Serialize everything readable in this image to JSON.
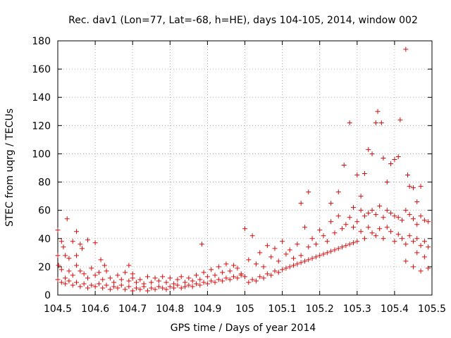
{
  "chart_data": {
    "type": "scatter",
    "title": "Rec. dav1 (Lon=77, Lat=-68, h=HE), days 104-105, 2014, window 002",
    "xlabel": "GPS time / Days of year 2014",
    "ylabel": "STEC from uqrg / TECUs",
    "xlim": [
      104.5,
      105.5
    ],
    "ylim": [
      0,
      180
    ],
    "xticks": [
      "104.5",
      "104.6",
      "104.7",
      "104.8",
      "104.9",
      "105",
      "105.1",
      "105.2",
      "105.3",
      "105.4",
      "105.5"
    ],
    "yticks": [
      "0",
      "20",
      "40",
      "60",
      "80",
      "100",
      "120",
      "140",
      "160",
      "180"
    ],
    "grid": true,
    "marker": "plus",
    "color": "#d01010",
    "series": [
      {
        "points": [
          [
            104.5,
            46
          ],
          [
            104.5,
            28
          ],
          [
            104.51,
            38
          ],
          [
            104.515,
            34
          ],
          [
            104.52,
            28
          ],
          [
            104.525,
            54
          ],
          [
            104.53,
            26
          ],
          [
            104.54,
            38
          ],
          [
            104.55,
            45
          ],
          [
            104.55,
            28
          ],
          [
            104.56,
            36
          ],
          [
            104.565,
            33
          ],
          [
            104.58,
            39
          ],
          [
            104.6,
            37
          ],
          [
            104.615,
            25
          ],
          [
            104.625,
            21
          ],
          [
            104.69,
            21
          ],
          [
            104.7,
            15
          ],
          [
            104.885,
            36
          ],
          [
            104.502,
            21
          ],
          [
            104.51,
            18
          ],
          [
            104.52,
            12
          ],
          [
            104.53,
            17
          ],
          [
            104.54,
            14
          ],
          [
            104.55,
            21
          ],
          [
            104.56,
            17
          ],
          [
            104.57,
            15
          ],
          [
            104.58,
            12
          ],
          [
            104.59,
            19
          ],
          [
            104.6,
            14
          ],
          [
            104.61,
            16
          ],
          [
            104.62,
            11
          ],
          [
            104.63,
            17
          ],
          [
            104.64,
            12
          ],
          [
            104.65,
            9
          ],
          [
            104.66,
            14
          ],
          [
            104.67,
            11
          ],
          [
            104.68,
            16
          ],
          [
            104.69,
            10
          ],
          [
            104.7,
            12
          ],
          [
            104.71,
            9
          ],
          [
            104.72,
            11
          ],
          [
            104.73,
            8
          ],
          [
            104.74,
            13
          ],
          [
            104.75,
            9
          ],
          [
            104.76,
            12
          ],
          [
            104.77,
            10
          ],
          [
            104.78,
            13
          ],
          [
            104.79,
            9
          ],
          [
            104.8,
            12
          ],
          [
            104.81,
            8
          ],
          [
            104.82,
            11
          ],
          [
            104.83,
            13
          ],
          [
            104.84,
            9
          ],
          [
            104.85,
            12
          ],
          [
            104.86,
            10
          ],
          [
            104.87,
            14
          ],
          [
            104.88,
            11
          ],
          [
            104.89,
            16
          ],
          [
            104.9,
            13
          ],
          [
            104.91,
            18
          ],
          [
            104.92,
            14
          ],
          [
            104.93,
            20
          ],
          [
            104.94,
            16
          ],
          [
            104.95,
            22
          ],
          [
            104.96,
            17
          ],
          [
            104.97,
            21
          ],
          [
            104.98,
            19
          ],
          [
            104.99,
            15
          ],
          [
            104.5,
            11
          ],
          [
            104.51,
            9
          ],
          [
            104.52,
            8
          ],
          [
            104.53,
            10
          ],
          [
            104.54,
            7
          ],
          [
            104.55,
            9
          ],
          [
            104.56,
            6
          ],
          [
            104.57,
            8
          ],
          [
            104.58,
            5
          ],
          [
            104.59,
            7
          ],
          [
            104.6,
            6
          ],
          [
            104.61,
            8
          ],
          [
            104.62,
            5
          ],
          [
            104.63,
            7
          ],
          [
            104.64,
            4
          ],
          [
            104.65,
            6
          ],
          [
            104.66,
            5
          ],
          [
            104.67,
            7
          ],
          [
            104.68,
            4
          ],
          [
            104.69,
            6
          ],
          [
            104.7,
            3
          ],
          [
            104.71,
            5
          ],
          [
            104.72,
            4
          ],
          [
            104.73,
            6
          ],
          [
            104.74,
            3
          ],
          [
            104.75,
            5
          ],
          [
            104.76,
            4
          ],
          [
            104.77,
            6
          ],
          [
            104.78,
            5
          ],
          [
            104.79,
            4
          ],
          [
            104.8,
            6
          ],
          [
            104.81,
            5
          ],
          [
            104.82,
            7
          ],
          [
            104.83,
            5
          ],
          [
            104.84,
            6
          ],
          [
            104.85,
            7
          ],
          [
            104.86,
            6
          ],
          [
            104.87,
            8
          ],
          [
            104.88,
            7
          ],
          [
            104.89,
            9
          ],
          [
            104.9,
            8
          ],
          [
            104.91,
            10
          ],
          [
            104.92,
            9
          ],
          [
            104.93,
            11
          ],
          [
            104.94,
            10
          ],
          [
            104.95,
            12
          ],
          [
            104.96,
            11
          ],
          [
            104.97,
            13
          ],
          [
            104.98,
            12
          ],
          [
            104.99,
            14
          ],
          [
            105.0,
            13
          ],
          [
            105.01,
            9
          ],
          [
            105.02,
            11
          ],
          [
            105.03,
            10
          ],
          [
            105.04,
            13
          ],
          [
            105.05,
            12
          ],
          [
            105.06,
            15
          ],
          [
            105.07,
            14
          ],
          [
            105.08,
            17
          ],
          [
            105.09,
            16
          ],
          [
            105.1,
            18
          ],
          [
            105.11,
            19
          ],
          [
            105.12,
            20
          ],
          [
            105.13,
            21
          ],
          [
            105.14,
            22
          ],
          [
            105.15,
            23
          ],
          [
            105.16,
            24
          ],
          [
            105.17,
            25
          ],
          [
            105.18,
            26
          ],
          [
            105.19,
            27
          ],
          [
            105.2,
            28
          ],
          [
            105.21,
            29
          ],
          [
            105.22,
            30
          ],
          [
            105.23,
            31
          ],
          [
            105.24,
            32
          ],
          [
            105.25,
            33
          ],
          [
            105.26,
            34
          ],
          [
            105.27,
            35
          ],
          [
            105.28,
            36
          ],
          [
            105.29,
            37
          ],
          [
            105.3,
            38
          ],
          [
            105.0,
            47
          ],
          [
            105.01,
            25
          ],
          [
            105.02,
            42
          ],
          [
            105.03,
            22
          ],
          [
            105.04,
            30
          ],
          [
            105.05,
            20
          ],
          [
            105.06,
            35
          ],
          [
            105.07,
            27
          ],
          [
            105.08,
            33
          ],
          [
            105.09,
            24
          ],
          [
            105.1,
            38
          ],
          [
            105.11,
            29
          ],
          [
            105.12,
            32
          ],
          [
            105.13,
            26
          ],
          [
            105.14,
            36
          ],
          [
            105.15,
            28
          ],
          [
            105.16,
            48
          ],
          [
            105.17,
            34
          ],
          [
            105.18,
            40
          ],
          [
            105.19,
            36
          ],
          [
            105.2,
            46
          ],
          [
            105.21,
            42
          ],
          [
            105.22,
            38
          ],
          [
            105.23,
            52
          ],
          [
            105.24,
            44
          ],
          [
            105.25,
            56
          ],
          [
            105.26,
            47
          ],
          [
            105.27,
            50
          ],
          [
            105.28,
            55
          ],
          [
            105.29,
            48
          ],
          [
            105.3,
            52
          ],
          [
            105.15,
            65
          ],
          [
            105.17,
            73
          ],
          [
            105.23,
            65
          ],
          [
            105.25,
            73
          ],
          [
            105.265,
            92
          ],
          [
            105.28,
            122
          ],
          [
            105.29,
            62
          ],
          [
            105.3,
            85
          ],
          [
            105.31,
            70
          ],
          [
            105.32,
            86
          ],
          [
            105.33,
            103
          ],
          [
            105.34,
            100
          ],
          [
            105.35,
            122
          ],
          [
            105.355,
            130
          ],
          [
            105.365,
            122
          ],
          [
            105.37,
            97
          ],
          [
            105.38,
            80
          ],
          [
            105.39,
            93
          ],
          [
            105.4,
            96
          ],
          [
            105.41,
            98
          ],
          [
            105.415,
            124
          ],
          [
            105.43,
            174
          ],
          [
            105.435,
            85
          ],
          [
            105.44,
            77
          ],
          [
            105.45,
            76
          ],
          [
            105.46,
            66
          ],
          [
            105.47,
            77
          ],
          [
            105.31,
            60
          ],
          [
            105.32,
            56
          ],
          [
            105.33,
            58
          ],
          [
            105.34,
            60
          ],
          [
            105.35,
            57
          ],
          [
            105.36,
            63
          ],
          [
            105.37,
            55
          ],
          [
            105.38,
            60
          ],
          [
            105.39,
            58
          ],
          [
            105.4,
            56
          ],
          [
            105.41,
            55
          ],
          [
            105.42,
            53
          ],
          [
            105.43,
            60
          ],
          [
            105.44,
            57
          ],
          [
            105.45,
            54
          ],
          [
            105.46,
            50
          ],
          [
            105.47,
            56
          ],
          [
            105.48,
            53
          ],
          [
            105.49,
            52
          ],
          [
            105.31,
            45
          ],
          [
            105.32,
            40
          ],
          [
            105.33,
            48
          ],
          [
            105.34,
            44
          ],
          [
            105.35,
            42
          ],
          [
            105.36,
            47
          ],
          [
            105.37,
            40
          ],
          [
            105.38,
            48
          ],
          [
            105.39,
            45
          ],
          [
            105.4,
            38
          ],
          [
            105.41,
            43
          ],
          [
            105.42,
            40
          ],
          [
            105.43,
            36
          ],
          [
            105.44,
            42
          ],
          [
            105.45,
            38
          ],
          [
            105.46,
            40
          ],
          [
            105.47,
            35
          ],
          [
            105.48,
            38
          ],
          [
            105.49,
            34
          ],
          [
            105.43,
            24
          ],
          [
            105.45,
            20
          ],
          [
            105.47,
            17
          ],
          [
            105.49,
            19
          ],
          [
            105.46,
            30
          ],
          [
            105.48,
            27
          ]
        ]
      }
    ]
  }
}
